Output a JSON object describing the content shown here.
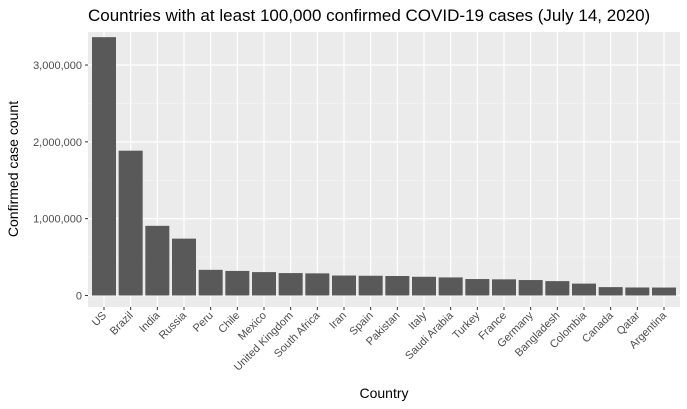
{
  "chart_data": {
    "type": "bar",
    "title": "Countries with at least 100,000 confirmed COVID-19 cases (July 14, 2020)",
    "xlabel": "Country",
    "ylabel": "Confirmed case count",
    "categories": [
      "US",
      "Brazil",
      "India",
      "Russia",
      "Peru",
      "Chile",
      "Mexico",
      "United Kingdom",
      "South Africa",
      "Iran",
      "Spain",
      "Pakistan",
      "Italy",
      "Saudi Arabia",
      "Turkey",
      "France",
      "Germany",
      "Bangladesh",
      "Colombia",
      "Canada",
      "Qatar",
      "Argentina"
    ],
    "values": [
      3363000,
      1884967,
      906752,
      739947,
      333867,
      319493,
      304435,
      291373,
      287796,
      259652,
      256619,
      253604,
      243230,
      235111,
      214001,
      210000,
      200890,
      186894,
      154277,
      108829,
      104016,
      103265
    ],
    "ylim": [
      -150000,
      3430000
    ],
    "yticks": [
      0,
      1000000,
      2000000,
      3000000
    ],
    "ytick_labels": [
      "0",
      "1,000,000",
      "2,000,000",
      "3,000,000"
    ],
    "grid": true,
    "legend": "none",
    "colors": {
      "panel": "#ebebeb",
      "grid_major": "#ffffff",
      "grid_minor": "#f5f5f5",
      "bar": "#595959"
    }
  }
}
